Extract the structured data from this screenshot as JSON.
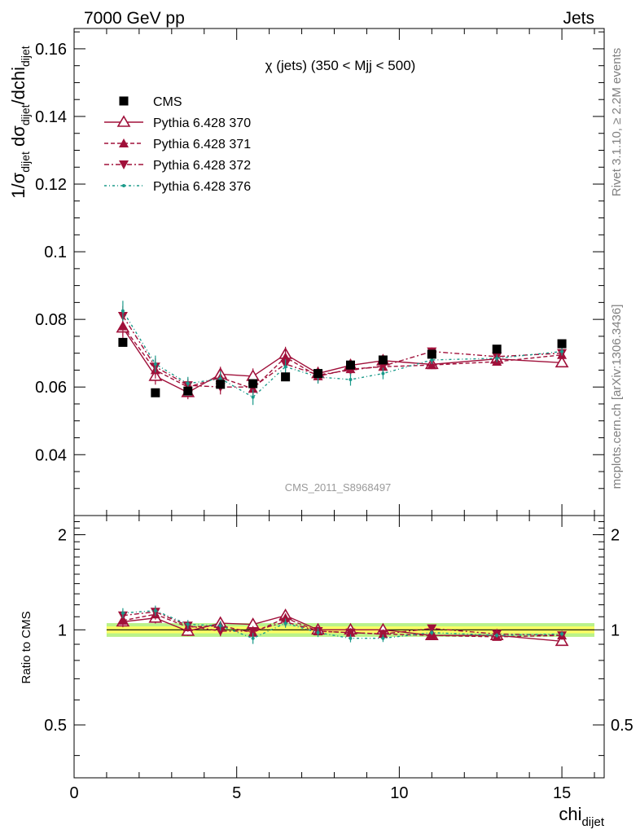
{
  "header": {
    "left": "7000 GeV pp",
    "right": "Jets"
  },
  "side_labels": {
    "rivet": "Rivet 3.1.10, ≥ 2.2M events",
    "mcplots": "mcplots.cern.ch [arXiv:1306.3436]"
  },
  "watermark": "CMS_2011_S8968497",
  "main_title": "χ (jets) (350 < Mjj <  500)",
  "y_label": "1/σ_dijet dσ_dijet/dchi_dijet",
  "x_label": "chi_dijet",
  "ratio_label": "Ratio to CMS",
  "colors": {
    "cms": "#000000",
    "p370": "#a0103a",
    "p371": "#a0103a",
    "p372": "#a0103a",
    "p376": "#1a9a8a",
    "band_inner": "#fbff63",
    "band_outer": "#b9f28a"
  },
  "chart_data": {
    "type": "scatter",
    "x": [
      1.5,
      2.5,
      3.5,
      4.5,
      5.5,
      6.5,
      7.5,
      8.5,
      9.5,
      11.0,
      13.0,
      15.0
    ],
    "xlim": [
      0,
      16.3
    ],
    "ylim": [
      0.022,
      0.166
    ],
    "ratio_ylim": [
      0.34,
      2.3
    ],
    "x_ticks": [
      0,
      5,
      10,
      15
    ],
    "y_ticks": [
      0.04,
      0.06,
      0.08,
      0.1,
      0.12,
      0.14,
      0.16
    ],
    "y_tick_labels": [
      "0.04",
      "0.06",
      "0.08",
      "0.1",
      "0.12",
      "0.14",
      "0.16"
    ],
    "ratio_ticks": [
      0.5,
      1,
      2
    ],
    "ratio_tick_labels": [
      "0.5",
      "1",
      "2"
    ],
    "series": [
      {
        "name": "CMS",
        "key": "cms",
        "marker": "square",
        "line": "none",
        "values": [
          0.0732,
          0.0583,
          0.0588,
          0.0608,
          0.061,
          0.063,
          0.064,
          0.0665,
          0.068,
          0.0697,
          0.0712,
          0.0728
        ],
        "ratio": [
          1,
          1,
          1,
          1,
          1,
          1,
          1,
          1,
          1,
          1,
          1,
          1
        ]
      },
      {
        "name": "Pythia 6.428 370",
        "key": "p370",
        "marker": "triangle-up-open",
        "line": "solid",
        "values": [
          0.0775,
          0.0632,
          0.0584,
          0.0638,
          0.0632,
          0.0697,
          0.064,
          0.0664,
          0.0678,
          0.0667,
          0.0683,
          0.0672
        ],
        "ratio": [
          1.06,
          1.09,
          0.99,
          1.05,
          1.04,
          1.11,
          1.0,
          1.0,
          1.0,
          0.96,
          0.96,
          0.92
        ],
        "err": [
          0.003,
          0.0025,
          0.002,
          0.0022,
          0.0023,
          0.0022,
          0.002,
          0.0018,
          0.0017,
          0.0012,
          0.0011,
          0.0012
        ]
      },
      {
        "name": "Pythia 6.428 371",
        "key": "p371",
        "marker": "triangle-up",
        "line": "dashed",
        "values": [
          0.078,
          0.065,
          0.06,
          0.0628,
          0.0595,
          0.0688,
          0.0632,
          0.0653,
          0.066,
          0.0665,
          0.0675,
          0.0695
        ],
        "ratio": [
          1.07,
          1.12,
          1.02,
          1.03,
          0.98,
          1.09,
          0.99,
          0.98,
          0.97,
          0.96,
          0.95,
          0.96
        ],
        "err": [
          0.003,
          0.0025,
          0.002,
          0.0022,
          0.0023,
          0.0022,
          0.002,
          0.0018,
          0.0017,
          0.0012,
          0.0011,
          0.0012
        ]
      },
      {
        "name": "Pythia 6.428 372",
        "key": "p372",
        "marker": "triangle-down",
        "line": "dashdot",
        "values": [
          0.081,
          0.066,
          0.0605,
          0.06,
          0.06,
          0.0668,
          0.0636,
          0.065,
          0.0662,
          0.0705,
          0.069,
          0.07
        ],
        "ratio": [
          1.11,
          1.14,
          1.03,
          0.99,
          0.99,
          1.06,
          0.99,
          0.98,
          0.97,
          1.01,
          0.97,
          0.96
        ],
        "err": [
          0.003,
          0.0025,
          0.002,
          0.0022,
          0.0023,
          0.0022,
          0.002,
          0.0018,
          0.0017,
          0.0012,
          0.0011,
          0.0012
        ]
      },
      {
        "name": "Pythia 6.428 376",
        "key": "p376",
        "marker": "dot",
        "line": "dashdot-fine",
        "values": [
          0.0825,
          0.0668,
          0.061,
          0.0625,
          0.057,
          0.066,
          0.063,
          0.0622,
          0.064,
          0.068,
          0.0685,
          0.0705
        ],
        "ratio": [
          1.13,
          1.15,
          1.04,
          1.03,
          0.94,
          1.05,
          0.98,
          0.94,
          0.94,
          0.98,
          0.96,
          0.97
        ],
        "err": [
          0.003,
          0.0025,
          0.002,
          0.0022,
          0.0023,
          0.0022,
          0.002,
          0.0018,
          0.0017,
          0.0012,
          0.0011,
          0.0012
        ]
      }
    ]
  }
}
